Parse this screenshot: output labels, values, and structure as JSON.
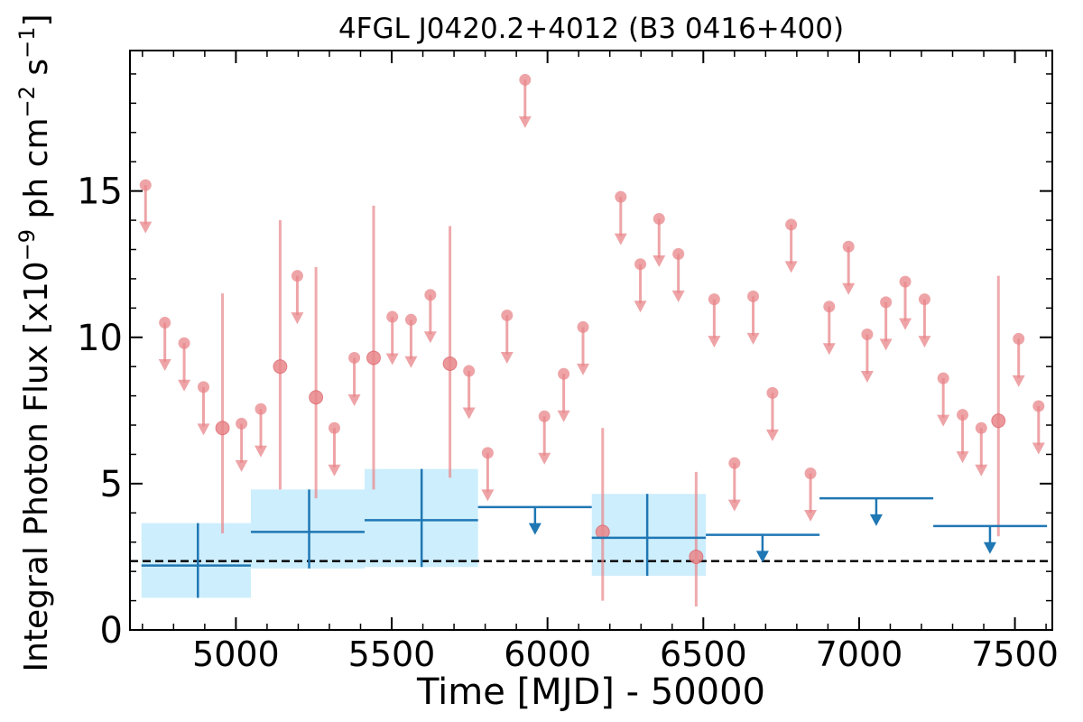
{
  "chart_data": {
    "type": "scatter",
    "title": "4FGL J0420.2+4012 (B3 0416+400)",
    "xlabel": "Time [MJD] - 50000",
    "ylabel_main": "Integral Photon Flux [x10",
    "ylabel_exp1": "−9",
    "ylabel_mid": " ph cm",
    "ylabel_exp2": "−2",
    "ylabel_mid2": " s",
    "ylabel_exp3": "−1",
    "ylabel_end": "]",
    "xlim": [
      4660,
      7620
    ],
    "ylim": [
      0,
      19.8
    ],
    "xticks": [
      5000,
      5500,
      6000,
      6500,
      7000,
      7500
    ],
    "xtick_labels": [
      "5000",
      "5500",
      "6000",
      "6500",
      "7000",
      "7500"
    ],
    "yticks": [
      0,
      5,
      10,
      15
    ],
    "ytick_labels": [
      "0",
      "5",
      "10",
      "15"
    ],
    "baseline": 2.35,
    "colors": {
      "short_bins": "#e8868a",
      "long_bins": "#1f77b4",
      "band": "#cdeefc"
    },
    "short_detections": [
      {
        "x": 4957,
        "y": 6.9,
        "lo": 3.3,
        "hi": 11.5
      },
      {
        "x": 5142,
        "y": 9.0,
        "lo": 4.8,
        "hi": 14.0
      },
      {
        "x": 5257,
        "y": 7.95,
        "lo": 4.5,
        "hi": 12.4
      },
      {
        "x": 5442,
        "y": 9.3,
        "lo": 4.8,
        "hi": 14.5
      },
      {
        "x": 5687,
        "y": 9.1,
        "lo": 5.2,
        "hi": 13.8
      },
      {
        "x": 6177,
        "y": 3.35,
        "lo": 1.0,
        "hi": 6.9
      },
      {
        "x": 6477,
        "y": 2.5,
        "lo": 0.8,
        "hi": 5.4
      },
      {
        "x": 7447,
        "y": 7.15,
        "lo": 3.2,
        "hi": 12.1
      }
    ],
    "short_upper_limits": [
      {
        "x": 4710,
        "y": 15.2
      },
      {
        "x": 4772,
        "y": 10.5
      },
      {
        "x": 4834,
        "y": 9.8
      },
      {
        "x": 4896,
        "y": 8.3
      },
      {
        "x": 5018,
        "y": 7.05
      },
      {
        "x": 5080,
        "y": 7.55
      },
      {
        "x": 5197,
        "y": 12.1
      },
      {
        "x": 5316,
        "y": 6.9
      },
      {
        "x": 5380,
        "y": 9.3
      },
      {
        "x": 5502,
        "y": 10.7
      },
      {
        "x": 5562,
        "y": 10.6
      },
      {
        "x": 5624,
        "y": 11.45
      },
      {
        "x": 5748,
        "y": 8.85
      },
      {
        "x": 5808,
        "y": 6.05
      },
      {
        "x": 5870,
        "y": 10.75
      },
      {
        "x": 5928,
        "y": 18.8
      },
      {
        "x": 5990,
        "y": 7.3
      },
      {
        "x": 6052,
        "y": 8.75
      },
      {
        "x": 6114,
        "y": 10.35
      },
      {
        "x": 6235,
        "y": 14.8
      },
      {
        "x": 6298,
        "y": 12.5
      },
      {
        "x": 6358,
        "y": 14.05
      },
      {
        "x": 6420,
        "y": 12.85
      },
      {
        "x": 6535,
        "y": 11.3
      },
      {
        "x": 6600,
        "y": 5.7
      },
      {
        "x": 6660,
        "y": 11.4
      },
      {
        "x": 6722,
        "y": 8.1
      },
      {
        "x": 6782,
        "y": 13.85
      },
      {
        "x": 6844,
        "y": 5.35
      },
      {
        "x": 6904,
        "y": 11.05
      },
      {
        "x": 6966,
        "y": 13.1
      },
      {
        "x": 7026,
        "y": 10.1
      },
      {
        "x": 7086,
        "y": 11.2
      },
      {
        "x": 7148,
        "y": 11.9
      },
      {
        "x": 7210,
        "y": 11.3
      },
      {
        "x": 7270,
        "y": 8.6
      },
      {
        "x": 7332,
        "y": 7.35
      },
      {
        "x": 7392,
        "y": 6.9
      },
      {
        "x": 7512,
        "y": 9.95
      },
      {
        "x": 7576,
        "y": 7.65
      }
    ],
    "long_detections": [
      {
        "x0": 4697,
        "x1": 5048,
        "y": 2.2,
        "lo": 1.1,
        "hi": 3.65,
        "xc": 4878
      },
      {
        "x0": 5048,
        "x1": 5413,
        "y": 3.35,
        "lo": 2.1,
        "hi": 4.8,
        "xc": 5235
      },
      {
        "x0": 5413,
        "x1": 5777,
        "y": 3.75,
        "lo": 2.15,
        "hi": 5.5,
        "xc": 5596
      },
      {
        "x0": 6142,
        "x1": 6508,
        "y": 3.15,
        "lo": 1.85,
        "hi": 4.65,
        "xc": 6320
      }
    ],
    "long_upper_limits": [
      {
        "x0": 5777,
        "x1": 6142,
        "y": 4.2,
        "xc": 5960
      },
      {
        "x0": 6508,
        "x1": 6873,
        "y": 3.25,
        "xc": 6690
      },
      {
        "x0": 6873,
        "x1": 7238,
        "y": 4.5,
        "xc": 7055
      },
      {
        "x0": 7238,
        "x1": 7603,
        "y": 3.55,
        "xc": 7420
      }
    ]
  }
}
